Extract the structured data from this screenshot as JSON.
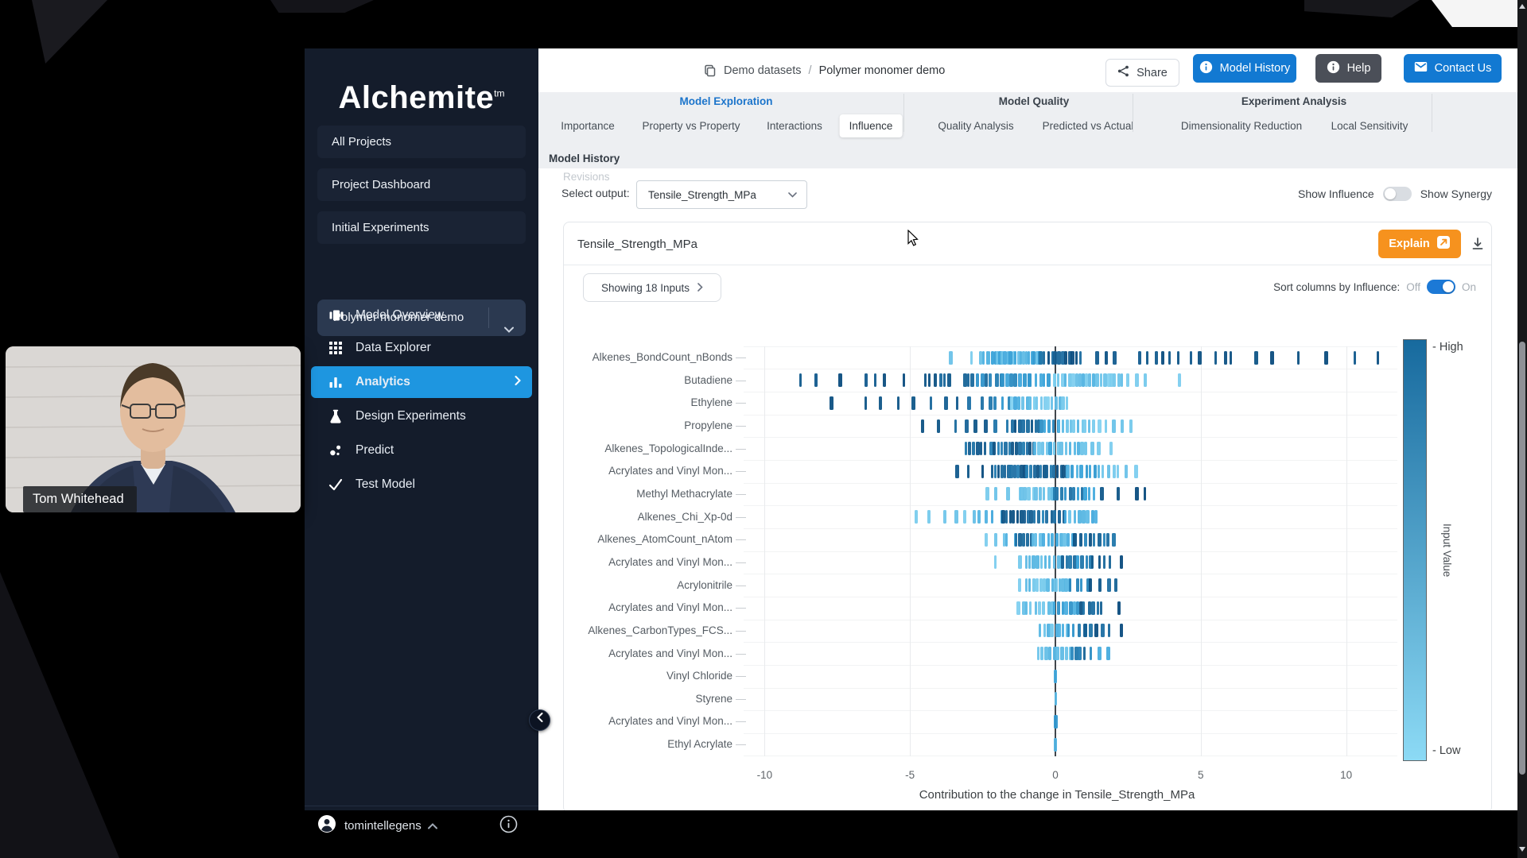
{
  "backdrop": {
    "presenter_name": "Tom Whitehead"
  },
  "sidebar": {
    "logo": "Alchemite",
    "logo_tm": "tm",
    "project_buttons": [
      "All Projects",
      "Project Dashboard",
      "Initial Experiments"
    ],
    "project_select": {
      "value": "Polymer monomer demo"
    },
    "menu": [
      {
        "label": "Model Overview",
        "icon": "model-overview-icon",
        "active": false
      },
      {
        "label": "Data Explorer",
        "icon": "data-explorer-icon",
        "active": false
      },
      {
        "label": "Analytics",
        "icon": "analytics-icon",
        "active": true
      },
      {
        "label": "Design Experiments",
        "icon": "design-experiments-icon",
        "active": false
      },
      {
        "label": "Predict",
        "icon": "predict-icon",
        "active": false
      },
      {
        "label": "Test Model",
        "icon": "test-model-icon",
        "active": false
      }
    ],
    "user": {
      "name": "tomintellegens"
    }
  },
  "topbar": {
    "breadcrumb": {
      "items": [
        "Demo datasets",
        "Polymer monomer demo"
      ],
      "separator": "/"
    },
    "share_label": "Share",
    "model_history_label": "Model History",
    "help_label": "Help",
    "contact_label": "Contact Us"
  },
  "tabs": {
    "groups": [
      {
        "label": "Model Exploration",
        "blue": true,
        "items": [
          {
            "label": "Importance",
            "active": false
          },
          {
            "label": "Property vs Property",
            "active": false
          },
          {
            "label": "Interactions",
            "active": false
          },
          {
            "label": "Influence",
            "active": true
          }
        ]
      },
      {
        "label": "Model Quality",
        "blue": false,
        "items": [
          {
            "label": "Quality Analysis",
            "active": false
          },
          {
            "label": "Predicted vs Actual",
            "active": false
          }
        ]
      },
      {
        "label": "Experiment Analysis",
        "blue": false,
        "items": [
          {
            "label": "Dimensionality Reduction",
            "active": false
          },
          {
            "label": "Local Sensitivity",
            "active": false
          }
        ]
      }
    ],
    "secondary_group": {
      "label": "Model History",
      "item": "Revisions"
    }
  },
  "controls": {
    "select_output_label": "Select output:",
    "select_output_value": "Tensile_Strength_MPa",
    "show_influence_label": "Show Influence",
    "show_synergy_label": "Show Synergy",
    "panel_title": "Tensile_Strength_MPa",
    "explain_label": "Explain",
    "showing_inputs_label": "Showing 18 Inputs",
    "sort_label": "Sort columns by Influence:",
    "off_label": "Off",
    "on_label": "On"
  },
  "colors": {
    "primary_blue": "#1279d2",
    "help_gray": "#4b4f58",
    "analytics_blue": "#1e96e0",
    "tab_blue": "#1b74cb",
    "explain_orange": "#f6921e",
    "toggle_on_blue": "#1c79d6",
    "sidebar_bg": "#141c2b"
  },
  "chart_data": {
    "type": "strip",
    "title": "Tensile_Strength_MPa",
    "xlabel": "Contribution to the change in Tensile_Strength_MPa",
    "x_ticks": [
      -10,
      -5,
      0,
      5,
      10
    ],
    "x_range": [
      -11.5,
      12.2
    ],
    "grid": true,
    "colorbar": {
      "high_label": "- High",
      "low_label": "- Low",
      "title": "Input Value",
      "top_color": "#176a9e",
      "bottom_color": "#8cdaf5"
    },
    "shade_stops": [
      "#8fd9f4",
      "#37a2d9",
      "#0b4c7e"
    ],
    "rows": [
      {
        "label": "Alkenes_BondCount_nBonds",
        "segments": [
          [
            -3.5,
            -2.5,
            3,
            0.1,
            0.25
          ],
          [
            -2.45,
            -0.55,
            22,
            0.15,
            0.55
          ],
          [
            -0.5,
            0.85,
            12,
            0.75,
            1
          ],
          [
            1.5,
            2.1,
            3,
            0.85,
            1
          ],
          [
            2.9,
            4.2,
            6,
            0.85,
            1
          ],
          [
            4.6,
            5.0,
            2,
            0.9,
            1
          ],
          [
            5.4,
            5.9,
            2,
            0.9,
            1
          ],
          [
            6.2,
            7.0,
            2,
            0.9,
            1
          ],
          [
            7.3,
            7.6,
            1,
            1,
            1
          ],
          [
            8.2,
            8.5,
            1,
            0.95,
            1
          ],
          [
            9.2,
            9.4,
            1,
            1,
            1
          ],
          [
            10.2,
            10.4,
            1,
            0.9,
            1
          ],
          [
            11.0,
            11.2,
            1,
            0.95,
            1
          ]
        ]
      },
      {
        "label": "Butadiene",
        "segments": [
          [
            -8.7,
            -8.3,
            2,
            0.9,
            1
          ],
          [
            -7.5,
            -7.3,
            1,
            1,
            1
          ],
          [
            -6.5,
            -5.9,
            3,
            0.85,
            1
          ],
          [
            -5.3,
            -5.1,
            1,
            0.95,
            1
          ],
          [
            -4.5,
            -3.8,
            5,
            0.75,
            1
          ],
          [
            -3.6,
            -3.2,
            2,
            0.8,
            0.95
          ],
          [
            -3.0,
            -1.9,
            8,
            0.55,
            0.9
          ],
          [
            -1.8,
            -0.9,
            7,
            0.45,
            0.75
          ],
          [
            -0.85,
            -0.05,
            6,
            0.4,
            0.6
          ],
          [
            0,
            2.3,
            20,
            0.05,
            0.35
          ],
          [
            2.5,
            3.1,
            3,
            0.05,
            0.15
          ],
          [
            4.2,
            4.35,
            1,
            0.1,
            0.1
          ]
        ]
      },
      {
        "label": "Ethylene",
        "segments": [
          [
            -7.8,
            -7.6,
            1,
            0.95,
            1
          ],
          [
            -6.5,
            -6.0,
            2,
            0.85,
            1
          ],
          [
            -5.5,
            -5.3,
            1,
            0.9,
            0.95
          ],
          [
            -4.8,
            -4.3,
            2,
            0.8,
            1
          ],
          [
            -3.8,
            -2.9,
            3,
            0.75,
            0.95
          ],
          [
            -2.5,
            -1.6,
            5,
            0.5,
            0.8
          ],
          [
            -1.5,
            0.4,
            16,
            0.05,
            0.45
          ]
        ]
      },
      {
        "label": "Propylene",
        "segments": [
          [
            -4.6,
            -4.1,
            2,
            0.85,
            1
          ],
          [
            -3.5,
            -3.1,
            2,
            0.8,
            1
          ],
          [
            -2.7,
            -1.7,
            4,
            0.75,
            0.95
          ],
          [
            -1.5,
            -0.55,
            8,
            0.75,
            1
          ],
          [
            -0.5,
            0.1,
            5,
            0.45,
            0.7
          ],
          [
            0.15,
            1.3,
            10,
            0.1,
            0.35
          ],
          [
            1.5,
            2.6,
            5,
            0.05,
            0.2
          ]
        ]
      },
      {
        "label": "Alkenes_TopologicalInde...",
        "segments": [
          [
            -3.1,
            -2.4,
            6,
            0.75,
            1
          ],
          [
            -2.2,
            -0.75,
            13,
            0.65,
            1
          ],
          [
            -0.7,
            0.9,
            13,
            0.12,
            0.5
          ],
          [
            1.0,
            1.5,
            3,
            0.08,
            0.2
          ],
          [
            1.8,
            2.0,
            1,
            0.1,
            0.1
          ]
        ]
      },
      {
        "label": "Acrylates and Vinyl Mon...",
        "segments": [
          [
            -3.4,
            -3.0,
            2,
            0.9,
            1
          ],
          [
            -2.6,
            -2.4,
            1,
            1,
            1
          ],
          [
            -2.2,
            0.4,
            24,
            0.7,
            1
          ],
          [
            0.45,
            1.5,
            8,
            0.3,
            0.6
          ],
          [
            1.6,
            2.4,
            5,
            0.08,
            0.25
          ],
          [
            2.7,
            2.85,
            1,
            0.1,
            0.1
          ]
        ]
      },
      {
        "label": "Methyl Methacrylate",
        "segments": [
          [
            -2.4,
            -1.3,
            4,
            0.08,
            0.2
          ],
          [
            -1.2,
            -0.1,
            9,
            0.1,
            0.3
          ],
          [
            -0.05,
            1.3,
            11,
            0.4,
            0.8
          ],
          [
            1.5,
            1.7,
            1,
            0.9,
            1
          ],
          [
            2.2,
            2.7,
            2,
            0.9,
            1
          ],
          [
            3.0,
            3.15,
            1,
            1,
            1
          ]
        ]
      },
      {
        "label": "Alkenes_Chi_Xp-0d",
        "segments": [
          [
            -4.8,
            -3.8,
            3,
            0.08,
            0.2
          ],
          [
            -3.4,
            -2.8,
            3,
            0.1,
            0.25
          ],
          [
            -2.6,
            -1.9,
            4,
            0.3,
            0.5
          ],
          [
            -1.8,
            -0.8,
            9,
            0.75,
            1
          ],
          [
            -0.75,
            0.3,
            8,
            0.5,
            0.9
          ],
          [
            0.35,
            1.4,
            8,
            0.18,
            0.45
          ]
        ]
      },
      {
        "label": "Alkenes_AtomCount_nAtom",
        "segments": [
          [
            -2.4,
            -1.8,
            3,
            0.08,
            0.2
          ],
          [
            -1.7,
            -1.4,
            2,
            0.3,
            0.5
          ],
          [
            -1.35,
            -0.85,
            5,
            0.75,
            1
          ],
          [
            -0.8,
            0.6,
            11,
            0.18,
            0.5
          ],
          [
            0.7,
            2.0,
            9,
            0.65,
            1
          ]
        ]
      },
      {
        "label": "Acrylates and Vinyl Mon...",
        "segments": [
          [
            -2.15,
            -2.0,
            1,
            0.1,
            0.1
          ],
          [
            -1.3,
            -1.15,
            1,
            0.15,
            0.15
          ],
          [
            -1.0,
            0.2,
            10,
            0.12,
            0.4
          ],
          [
            0.25,
            1.2,
            8,
            0.5,
            0.9
          ],
          [
            1.3,
            1.9,
            4,
            0.8,
            1
          ],
          [
            2.2,
            2.35,
            1,
            1,
            1
          ]
        ]
      },
      {
        "label": "Acrylonitrile",
        "segments": [
          [
            -1.3,
            -1.15,
            1,
            0.1,
            0.1
          ],
          [
            -1.0,
            0.5,
            13,
            0.08,
            0.35
          ],
          [
            0.55,
            1.1,
            4,
            0.45,
            0.75
          ],
          [
            1.2,
            2.1,
            4,
            0.8,
            1
          ]
        ]
      },
      {
        "label": "Acrylates and Vinyl Mon...",
        "segments": [
          [
            -1.25,
            -0.1,
            9,
            0.08,
            0.3
          ],
          [
            -0.05,
            0.8,
            7,
            0.3,
            0.6
          ],
          [
            0.85,
            1.6,
            6,
            0.75,
            1
          ],
          [
            2.1,
            2.3,
            1,
            0.9,
            1
          ]
        ]
      },
      {
        "label": "Alkenes_CarbonTypes_FCS...",
        "segments": [
          [
            -0.5,
            0.4,
            8,
            0.12,
            0.4
          ],
          [
            0.45,
            1.0,
            4,
            0.45,
            0.75
          ],
          [
            1.05,
            1.8,
            5,
            0.75,
            1
          ],
          [
            2.2,
            2.35,
            1,
            0.9,
            1
          ]
        ]
      },
      {
        "label": "Acrylates and Vinyl Mon...",
        "segments": [
          [
            -0.6,
            0.5,
            9,
            0.12,
            0.4
          ],
          [
            0.55,
            1.2,
            5,
            0.55,
            0.9
          ],
          [
            1.5,
            1.8,
            2,
            0.25,
            0.45
          ]
        ]
      },
      {
        "label": "Vinyl Chloride",
        "segments": [
          [
            -0.08,
            0.08,
            1,
            0.45,
            0.45
          ]
        ]
      },
      {
        "label": "Styrene",
        "segments": [
          [
            -0.06,
            0.06,
            1,
            0.3,
            0.3
          ]
        ]
      },
      {
        "label": "Acrylates and Vinyl Mon...",
        "segments": [
          [
            -0.07,
            0.07,
            1,
            0.55,
            0.55
          ]
        ]
      },
      {
        "label": "Ethyl Acrylate",
        "segments": [
          [
            -0.06,
            0.06,
            1,
            0.35,
            0.35
          ]
        ]
      }
    ]
  }
}
